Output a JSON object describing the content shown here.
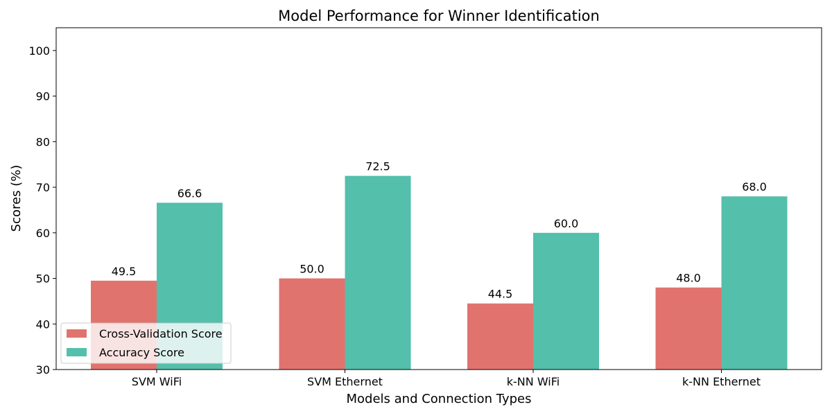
{
  "chart_data": {
    "type": "bar",
    "title": "Model Performance for Winner Identification",
    "xlabel": "Models and Connection Types",
    "ylabel": "Scores (%)",
    "categories": [
      "SVM WiFi",
      "SVM Ethernet",
      "k-NN WiFi",
      "k-NN Ethernet"
    ],
    "series": [
      {
        "name": "Cross-Validation Score",
        "values": [
          49.5,
          50.0,
          44.5,
          48.0
        ],
        "color": "#e1736e"
      },
      {
        "name": "Accuracy Score",
        "values": [
          66.6,
          72.5,
          60.0,
          68.0
        ],
        "color": "#54bfab"
      }
    ],
    "ylim": [
      30,
      105
    ],
    "yticks": [
      30,
      40,
      50,
      60,
      70,
      80,
      90,
      100
    ],
    "grid": false,
    "legend_position": "lower-left"
  }
}
